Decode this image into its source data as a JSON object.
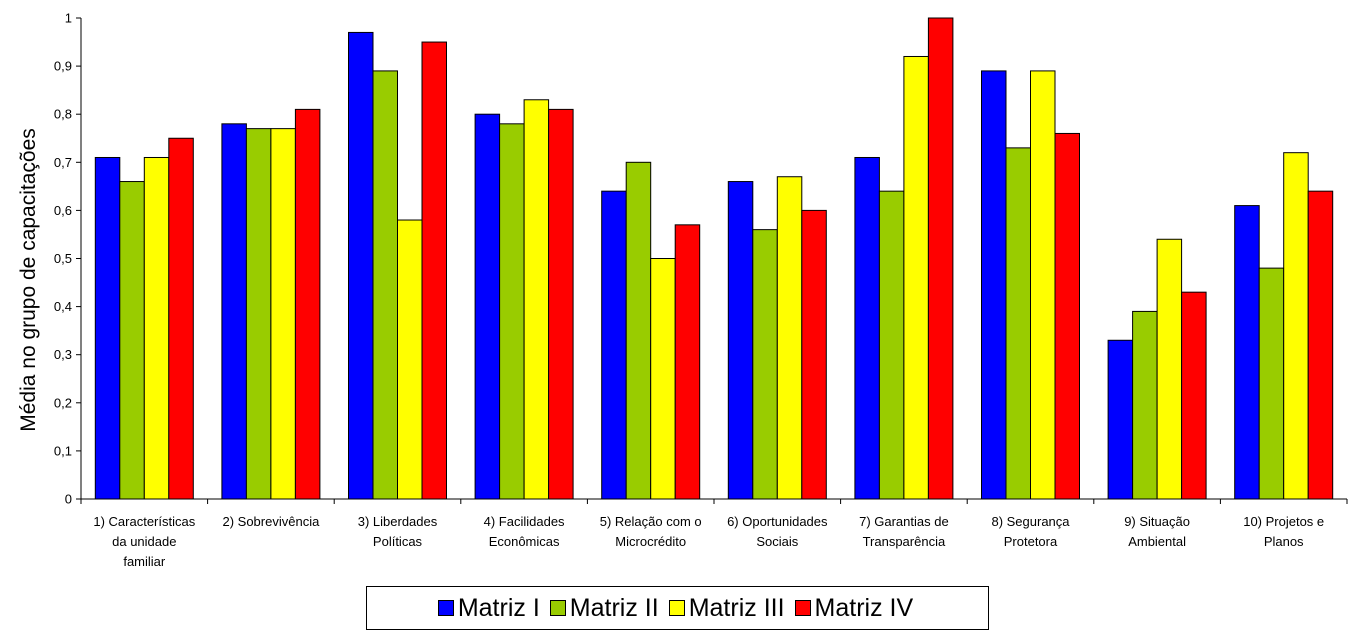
{
  "chart_data": {
    "type": "bar",
    "ylabel": "Média no grupo de capacitações",
    "xlabel": "",
    "ylim": [
      0,
      1
    ],
    "yticks": [
      "0",
      "0,1",
      "0,2",
      "0,3",
      "0,4",
      "0,5",
      "0,6",
      "0,7",
      "0,8",
      "0,9",
      "1"
    ],
    "grid": false,
    "legend_position": "bottom",
    "categories": [
      [
        "1) Características",
        "da unidade",
        "familiar"
      ],
      [
        "2) Sobrevivência"
      ],
      [
        "3) Liberdades",
        "Políticas"
      ],
      [
        "4) Facilidades",
        "Econômicas"
      ],
      [
        "5) Relação com o",
        "Microcrédito"
      ],
      [
        "6) Oportunidades",
        "Sociais"
      ],
      [
        "7) Garantias de",
        "Transparência"
      ],
      [
        "8) Segurança",
        "Protetora"
      ],
      [
        "9) Situação",
        "Ambiental"
      ],
      [
        "10) Projetos e",
        "Planos"
      ]
    ],
    "series": [
      {
        "name": "Matriz I",
        "color": "#0000FF",
        "values": [
          0.71,
          0.78,
          0.97,
          0.8,
          0.64,
          0.66,
          0.71,
          0.89,
          0.33,
          0.61
        ]
      },
      {
        "name": "Matriz II",
        "color": "#99CC00",
        "values": [
          0.66,
          0.77,
          0.89,
          0.78,
          0.7,
          0.56,
          0.64,
          0.73,
          0.39,
          0.48
        ]
      },
      {
        "name": "Matriz III",
        "color": "#FFFF00",
        "values": [
          0.71,
          0.77,
          0.58,
          0.83,
          0.5,
          0.67,
          0.92,
          0.89,
          0.54,
          0.72
        ]
      },
      {
        "name": "Matriz IV",
        "color": "#FF0000",
        "values": [
          0.75,
          0.81,
          0.95,
          0.81,
          0.57,
          0.6,
          1.0,
          0.76,
          0.43,
          0.64
        ]
      }
    ]
  }
}
